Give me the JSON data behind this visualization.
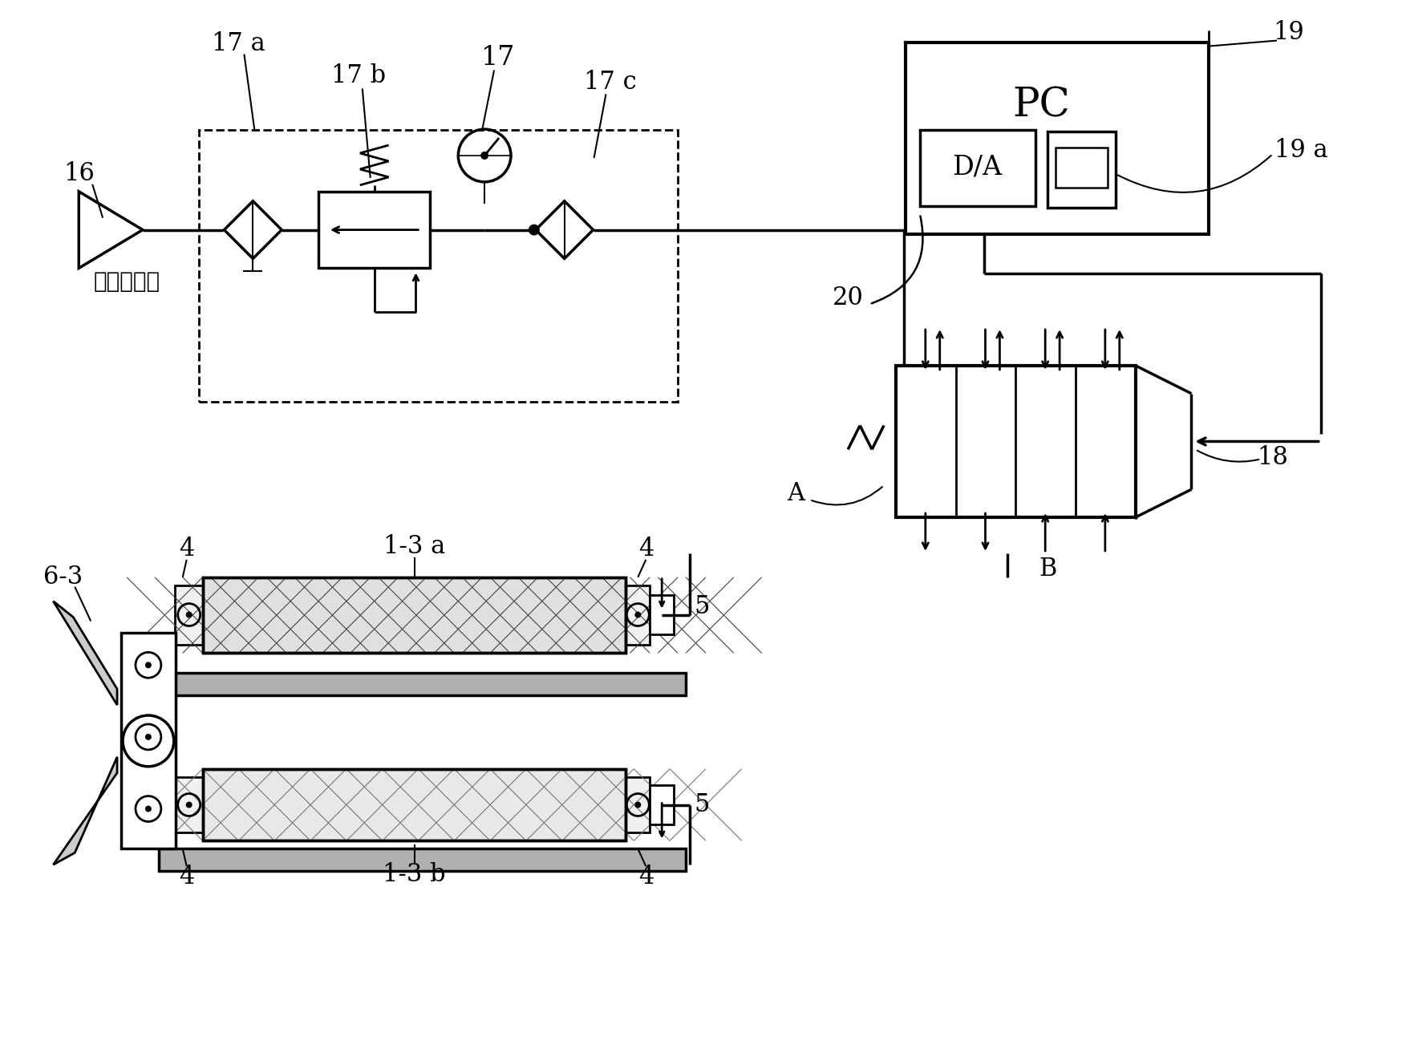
{
  "bg_color": "#ffffff",
  "line_color": "#000000",
  "fig_width": 17.48,
  "fig_height": 13.23,
  "labels": {
    "air_source": "空气圧力源",
    "PC": "PC",
    "DA": "D/A",
    "ref16": "16",
    "ref17": "17",
    "ref17a": "17 a",
    "ref17b": "17 b",
    "ref17c": "17 c",
    "ref18": "18",
    "ref19": "19",
    "ref19a": "19 a",
    "ref20": "20",
    "ref4": "4",
    "ref5": "5",
    "ref6_3": "6-3",
    "ref1_3a": "1-3 a",
    "ref1_3b": "1-3 b",
    "refA": "A",
    "refB": "B"
  }
}
